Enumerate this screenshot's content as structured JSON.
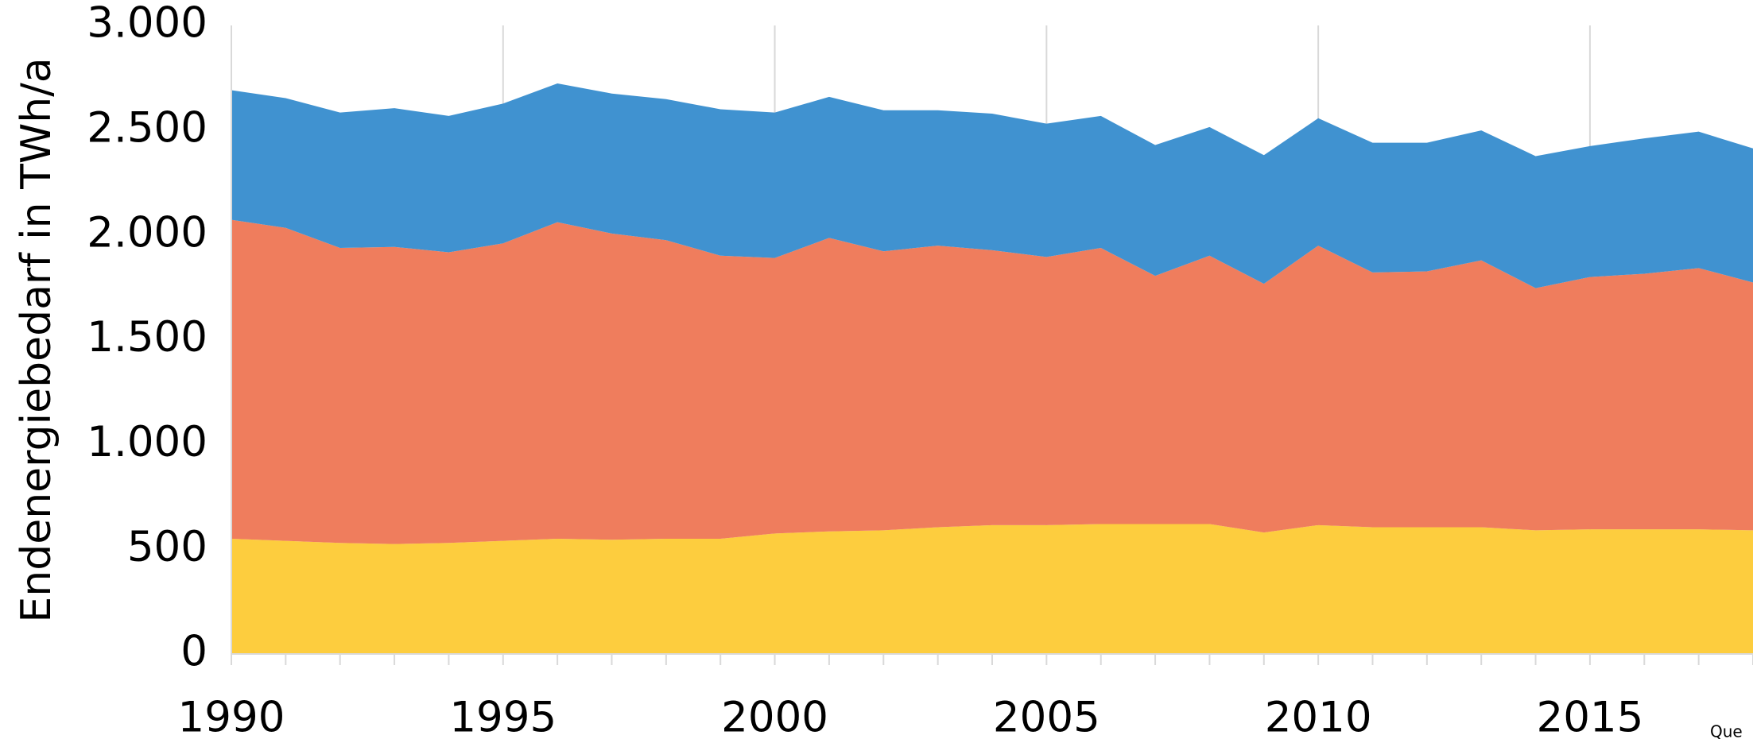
{
  "chart_data": {
    "type": "stacked_area",
    "y_label": "Endenergiebedarf in TWh/a",
    "source": "Que",
    "x": [
      1990,
      1991,
      1992,
      1993,
      1994,
      1995,
      1996,
      1997,
      1998,
      1999,
      2000,
      2001,
      2002,
      2003,
      2004,
      2005,
      2006,
      2007,
      2008,
      2009,
      2010,
      2011,
      2012,
      2013,
      2014,
      2015,
      2016,
      2017,
      2018
    ],
    "series": [
      {
        "color": "#fdcd3e",
        "values": [
          550,
          540,
          530,
          525,
          530,
          540,
          550,
          545,
          550,
          550,
          575,
          585,
          590,
          605,
          615,
          615,
          620,
          620,
          620,
          580,
          615,
          605,
          605,
          605,
          590,
          595,
          595,
          595,
          590
        ]
      },
      {
        "color": "#ef7d5d",
        "values": [
          1522,
          1494,
          1408,
          1418,
          1387,
          1420,
          1511,
          1462,
          1425,
          1351,
          1315,
          1401,
          1332,
          1344,
          1312,
          1280,
          1318,
          1185,
          1281,
          1187,
          1334,
          1216,
          1221,
          1274,
          1156,
          1204,
          1220,
          1247,
          1183
        ]
      },
      {
        "color": "#4092d0",
        "values": [
          619,
          619,
          646,
          662,
          651,
          667,
          662,
          668,
          673,
          699,
          694,
          673,
          673,
          646,
          652,
          636,
          630,
          624,
          614,
          614,
          608,
          619,
          614,
          620,
          630,
          625,
          646,
          651,
          640
        ]
      }
    ],
    "xlim": [
      1990,
      2018
    ],
    "xticks": [
      1990,
      1995,
      2000,
      2005,
      2010,
      2015
    ],
    "ylim": [
      0,
      3000
    ],
    "yticks": [
      0,
      {
        "value": 500,
        "label": "500"
      },
      {
        "value": 1000,
        "label": "1.000"
      },
      {
        "value": 1500,
        "label": "1.500"
      },
      {
        "value": 2000,
        "label": "2.000"
      },
      {
        "value": 2500,
        "label": "2.500"
      },
      {
        "value": 3000,
        "label": "3.000"
      }
    ],
    "grid": true
  }
}
